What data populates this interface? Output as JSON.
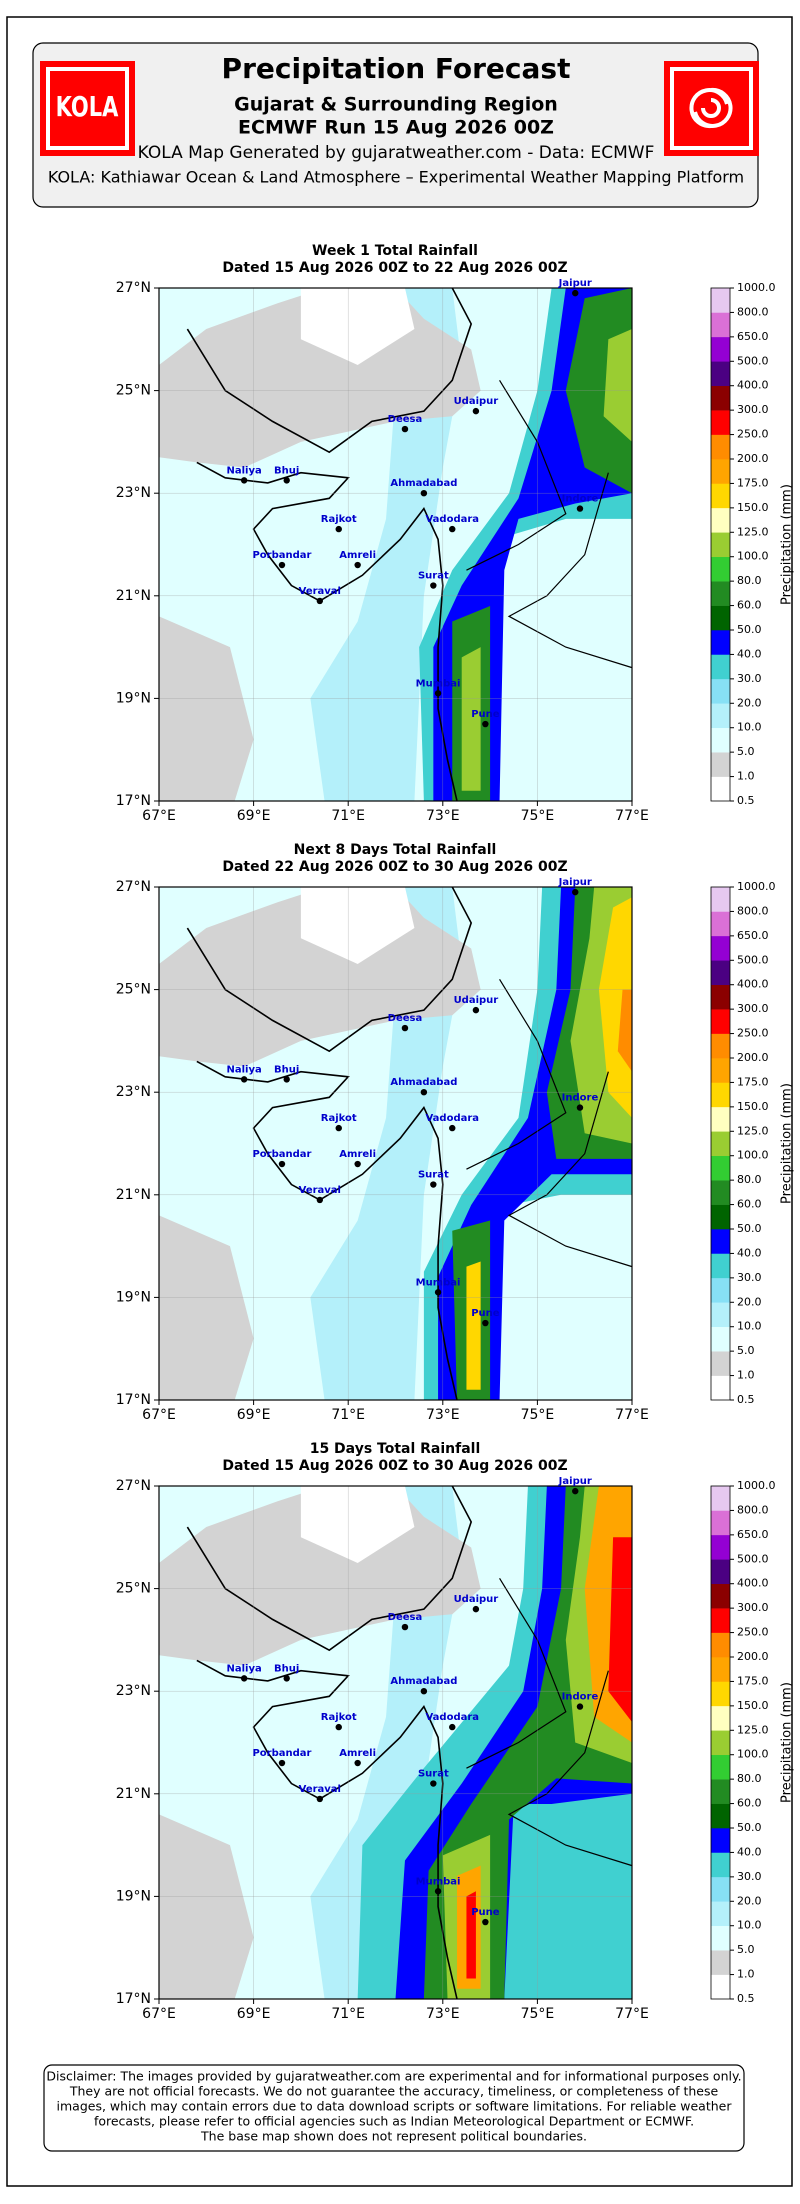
{
  "header": {
    "logo_text": "KOLA",
    "title": "Precipitation Forecast",
    "subtitle": "Gujarat & Surrounding Region",
    "run": "ECMWF Run 15 Aug 2026 00Z",
    "credit": "KOLA Map Generated by gujaratweather.com - Data: ECMWF",
    "platform": "KOLA: Kathiawar Ocean & Land Atmosphere – Experimental Weather Mapping Platform"
  },
  "panels": [
    {
      "title": "Week 1 Total Rainfall",
      "subtitle": "Dated 15 Aug 2026 00Z to 22 Aug 2026 00Z"
    },
    {
      "title": "Next 8 Days Total Rainfall",
      "subtitle": "Dated 22 Aug 2026 00Z to 30 Aug 2026 00Z"
    },
    {
      "title": "15 Days Total Rainfall",
      "subtitle": "Dated 15 Aug 2026 00Z to 30 Aug 2026 00Z"
    }
  ],
  "map": {
    "xlim": [
      67,
      77
    ],
    "ylim": [
      17,
      27
    ],
    "xticks": [
      {
        "value": 67,
        "label": "67°E"
      },
      {
        "value": 69,
        "label": "69°E"
      },
      {
        "value": 71,
        "label": "71°E"
      },
      {
        "value": 73,
        "label": "73°E"
      },
      {
        "value": 75,
        "label": "75°E"
      },
      {
        "value": 77,
        "label": "77°E"
      }
    ],
    "yticks": [
      {
        "value": 17,
        "label": "17°N"
      },
      {
        "value": 19,
        "label": "19°N"
      },
      {
        "value": 21,
        "label": "21°N"
      },
      {
        "value": 23,
        "label": "23°N"
      },
      {
        "value": 25,
        "label": "25°N"
      },
      {
        "value": 27,
        "label": "27°N"
      }
    ],
    "grid": true,
    "cities": [
      {
        "name": "Jaipur",
        "lon": 75.8,
        "lat": 26.9
      },
      {
        "name": "Udaipur",
        "lon": 73.7,
        "lat": 24.6
      },
      {
        "name": "Deesa",
        "lon": 72.2,
        "lat": 24.25
      },
      {
        "name": "Naliya",
        "lon": 68.8,
        "lat": 23.25
      },
      {
        "name": "Bhuj",
        "lon": 69.7,
        "lat": 23.25
      },
      {
        "name": "Ahmadabad",
        "lon": 72.6,
        "lat": 23.0
      },
      {
        "name": "Rajkot",
        "lon": 70.8,
        "lat": 22.3
      },
      {
        "name": "Vadodara",
        "lon": 73.2,
        "lat": 22.3
      },
      {
        "name": "Indore",
        "lon": 75.9,
        "lat": 22.7
      },
      {
        "name": "Porbandar",
        "lon": 69.6,
        "lat": 21.6
      },
      {
        "name": "Amreli",
        "lon": 71.2,
        "lat": 21.6
      },
      {
        "name": "Veraval",
        "lon": 70.4,
        "lat": 20.9
      },
      {
        "name": "Surat",
        "lon": 72.8,
        "lat": 21.2
      },
      {
        "name": "Mumbai",
        "lon": 72.9,
        "lat": 19.1
      },
      {
        "name": "Pune",
        "lon": 73.9,
        "lat": 18.5
      }
    ],
    "colorbar": {
      "label": "Precipitation (mm)",
      "ticks": [
        0.5,
        {
          "value": 1,
          "label": "1.0"
        },
        {
          "value": 5,
          "label": "5.0"
        },
        {
          "value": 10,
          "label": "10.0"
        },
        {
          "value": 20,
          "label": "20.0"
        },
        {
          "value": 30,
          "label": "30.0"
        },
        {
          "value": 40,
          "label": "40.0"
        },
        {
          "value": 50,
          "label": "50.0"
        },
        {
          "value": 60,
          "label": "60.0"
        },
        {
          "value": 80,
          "label": "80.0"
        },
        {
          "value": 100,
          "label": "100.0"
        },
        {
          "value": 125,
          "label": "125.0"
        },
        {
          "value": 150,
          "label": "150.0"
        },
        {
          "value": 175,
          "label": "175.0"
        },
        {
          "value": 200,
          "label": "200.0"
        },
        {
          "value": 250,
          "label": "250.0"
        },
        {
          "value": 300,
          "label": "300.0"
        },
        {
          "value": 400,
          "label": "400.0"
        },
        {
          "value": 500,
          "label": "500.0"
        },
        {
          "value": 650,
          "label": "650.0"
        },
        {
          "value": 800,
          "label": "800.0"
        },
        {
          "value": 1000,
          "label": "1000.0"
        }
      ],
      "colors": [
        "#ffffff",
        "#d3d3d3",
        "#e0ffff",
        "#b4f0fa",
        "#87e0f5",
        "#40d0d0",
        "#0000ff",
        "#006400",
        "#228b22",
        "#32cd32",
        "#9acd32",
        "#ffffc0",
        "#ffd700",
        "#ffa500",
        "#ff8c00",
        "#ff0000",
        "#8b0000",
        "#4b0082",
        "#9400d3",
        "#da70d6",
        "#e6c8f0"
      ]
    }
  },
  "disclaimer": [
    "Disclaimer: The images provided by gujaratweather.com are experimental and for informational purposes only.",
    "They are not official forecasts. We do not guarantee the accuracy, timeliness, or completeness of these",
    "images, which may contain errors due to data download scripts or software limitations. For reliable weather",
    "forecasts, please refer to official agencies such as Indian Meteorological Department or ECMWF.",
    "The base map shown does not represent political boundaries."
  ]
}
